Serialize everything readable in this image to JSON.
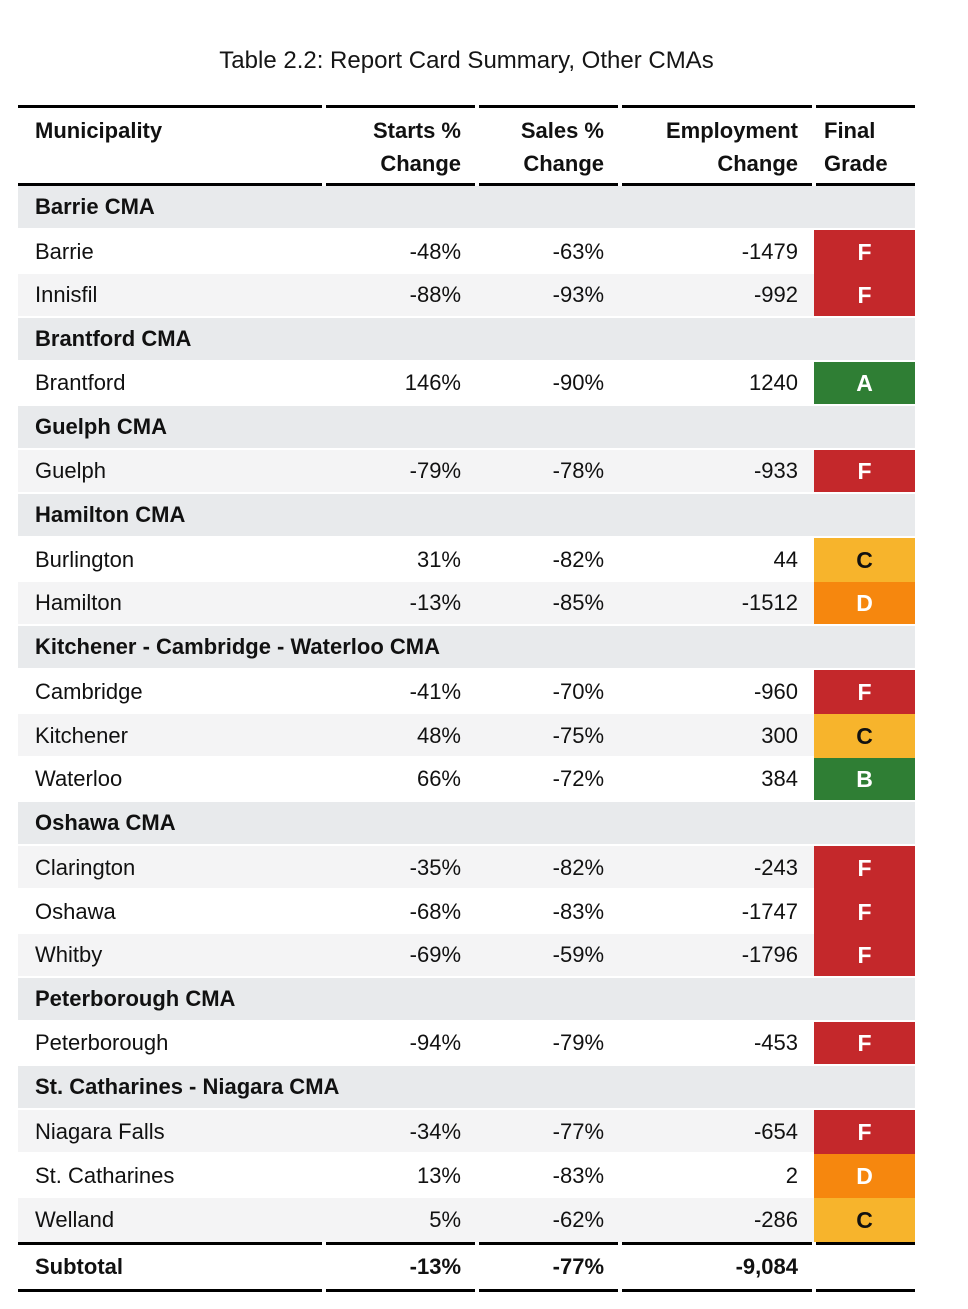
{
  "title": "Table 2.2: Report Card Summary, Other CMAs",
  "header": {
    "municipality": "Municipality",
    "starts": [
      "Starts %",
      "Change"
    ],
    "sales": [
      "Sales %",
      "Change"
    ],
    "employment": [
      "Employment",
      "Change"
    ],
    "final": [
      "Final",
      "Grade"
    ]
  },
  "sections": [
    {
      "label": "Barrie CMA",
      "rows": [
        {
          "municipality": "Barrie",
          "starts": "-48%",
          "sales": "-63%",
          "employment": "-1479",
          "grade": "F"
        },
        {
          "municipality": "Innisfil",
          "starts": "-88%",
          "sales": "-93%",
          "employment": "-992",
          "grade": "F"
        }
      ]
    },
    {
      "label": "Brantford CMA",
      "rows": [
        {
          "municipality": "Brantford",
          "starts": "146%",
          "sales": "-90%",
          "employment": "1240",
          "grade": "A"
        }
      ]
    },
    {
      "label": "Guelph CMA",
      "rows": [
        {
          "municipality": "Guelph",
          "starts": "-79%",
          "sales": "-78%",
          "employment": "-933",
          "grade": "F"
        }
      ]
    },
    {
      "label": "Hamilton CMA",
      "rows": [
        {
          "municipality": "Burlington",
          "starts": "31%",
          "sales": "-82%",
          "employment": "44",
          "grade": "C"
        },
        {
          "municipality": "Hamilton",
          "starts": "-13%",
          "sales": "-85%",
          "employment": "-1512",
          "grade": "D"
        }
      ]
    },
    {
      "label": "Kitchener - Cambridge - Waterloo CMA",
      "rows": [
        {
          "municipality": "Cambridge",
          "starts": "-41%",
          "sales": "-70%",
          "employment": "-960",
          "grade": "F"
        },
        {
          "municipality": "Kitchener",
          "starts": "48%",
          "sales": "-75%",
          "employment": "300",
          "grade": "C"
        },
        {
          "municipality": "Waterloo",
          "starts": "66%",
          "sales": "-72%",
          "employment": "384",
          "grade": "B"
        }
      ]
    },
    {
      "label": "Oshawa CMA",
      "rows": [
        {
          "municipality": "Clarington",
          "starts": "-35%",
          "sales": "-82%",
          "employment": "-243",
          "grade": "F"
        },
        {
          "municipality": "Oshawa",
          "starts": "-68%",
          "sales": "-83%",
          "employment": "-1747",
          "grade": "F"
        },
        {
          "municipality": "Whitby",
          "starts": "-69%",
          "sales": "-59%",
          "employment": "-1796",
          "grade": "F"
        }
      ]
    },
    {
      "label": "Peterborough CMA",
      "rows": [
        {
          "municipality": "Peterborough",
          "starts": "-94%",
          "sales": "-79%",
          "employment": "-453",
          "grade": "F"
        }
      ]
    },
    {
      "label": "St. Catharines - Niagara CMA",
      "rows": [
        {
          "municipality": "Niagara Falls",
          "starts": "-34%",
          "sales": "-77%",
          "employment": "-654",
          "grade": "F"
        },
        {
          "municipality": "St. Catharines",
          "starts": "13%",
          "sales": "-83%",
          "employment": "2",
          "grade": "D"
        },
        {
          "municipality": "Welland",
          "starts": "5%",
          "sales": "-62%",
          "employment": "-286",
          "grade": "C"
        }
      ]
    }
  ],
  "subtotal": {
    "label": "Subtotal",
    "starts": "-13%",
    "sales": "-77%",
    "employment": "-9,084"
  },
  "colors": {
    "text": "#111111",
    "section_header_bg": "#e8eaec",
    "stripe_bg": "#f4f4f5",
    "row_bg": "#ffffff",
    "rule": "#000000"
  },
  "grade_styles": {
    "A": {
      "bg": "#2f7e34",
      "text": "#ffffff"
    },
    "B": {
      "bg": "#2f7e34",
      "text": "#ffffff"
    },
    "C": {
      "bg": "#f7b42c",
      "text": "#111111"
    },
    "D": {
      "bg": "#f6870e",
      "text": "#ffffff"
    },
    "F": {
      "bg": "#c4282b",
      "text": "#ffffff"
    }
  }
}
